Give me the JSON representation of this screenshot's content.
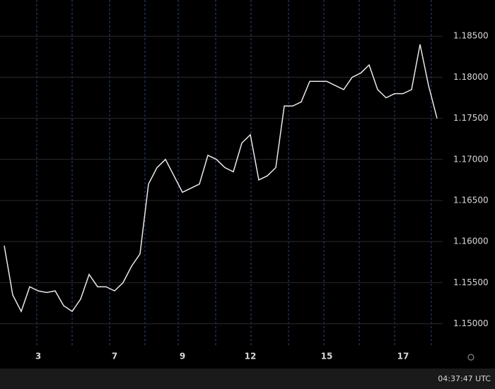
{
  "chart_data": {
    "type": "line",
    "categories": [
      null,
      null,
      null,
      null,
      "3",
      null,
      null,
      null,
      null,
      null,
      null,
      null,
      null,
      "7",
      null,
      null,
      null,
      null,
      null,
      null,
      null,
      "9",
      null,
      null,
      null,
      null,
      null,
      null,
      null,
      "12",
      null,
      null,
      null,
      null,
      null,
      null,
      null,
      null,
      "15",
      null,
      null,
      null,
      null,
      null,
      null,
      null,
      null,
      "17",
      null,
      null,
      null,
      null
    ],
    "values": [
      1.1595,
      1.1535,
      1.1515,
      1.1545,
      1.154,
      1.1538,
      1.154,
      1.1522,
      1.1515,
      1.153,
      1.156,
      1.1545,
      1.1545,
      1.154,
      1.155,
      1.157,
      1.1585,
      1.167,
      1.169,
      1.17,
      1.168,
      1.166,
      1.1665,
      1.167,
      1.1705,
      1.17,
      1.169,
      1.1685,
      1.172,
      1.173,
      1.1675,
      1.168,
      1.169,
      1.1765,
      1.1765,
      1.177,
      1.1795,
      1.1795,
      1.1795,
      1.179,
      1.1785,
      1.18,
      1.1805,
      1.1815,
      1.1785,
      1.1775,
      1.178,
      1.178,
      1.1785,
      1.184,
      1.179,
      1.175
    ],
    "color": "#e8e8e8",
    "ylim": [
      1.1473,
      1.1894
    ],
    "yticks": [
      {
        "value": 1.15,
        "label": "1.15000"
      },
      {
        "value": 1.155,
        "label": "1.15500"
      },
      {
        "value": 1.16,
        "label": "1.16000"
      },
      {
        "value": 1.165,
        "label": "1.16500"
      },
      {
        "value": 1.17,
        "label": "1.17000"
      },
      {
        "value": 1.175,
        "label": "1.17500"
      },
      {
        "value": 1.18,
        "label": "1.18000"
      },
      {
        "value": 1.185,
        "label": "1.18500"
      }
    ],
    "grid": true,
    "clock": "04:37:47 UTC"
  }
}
